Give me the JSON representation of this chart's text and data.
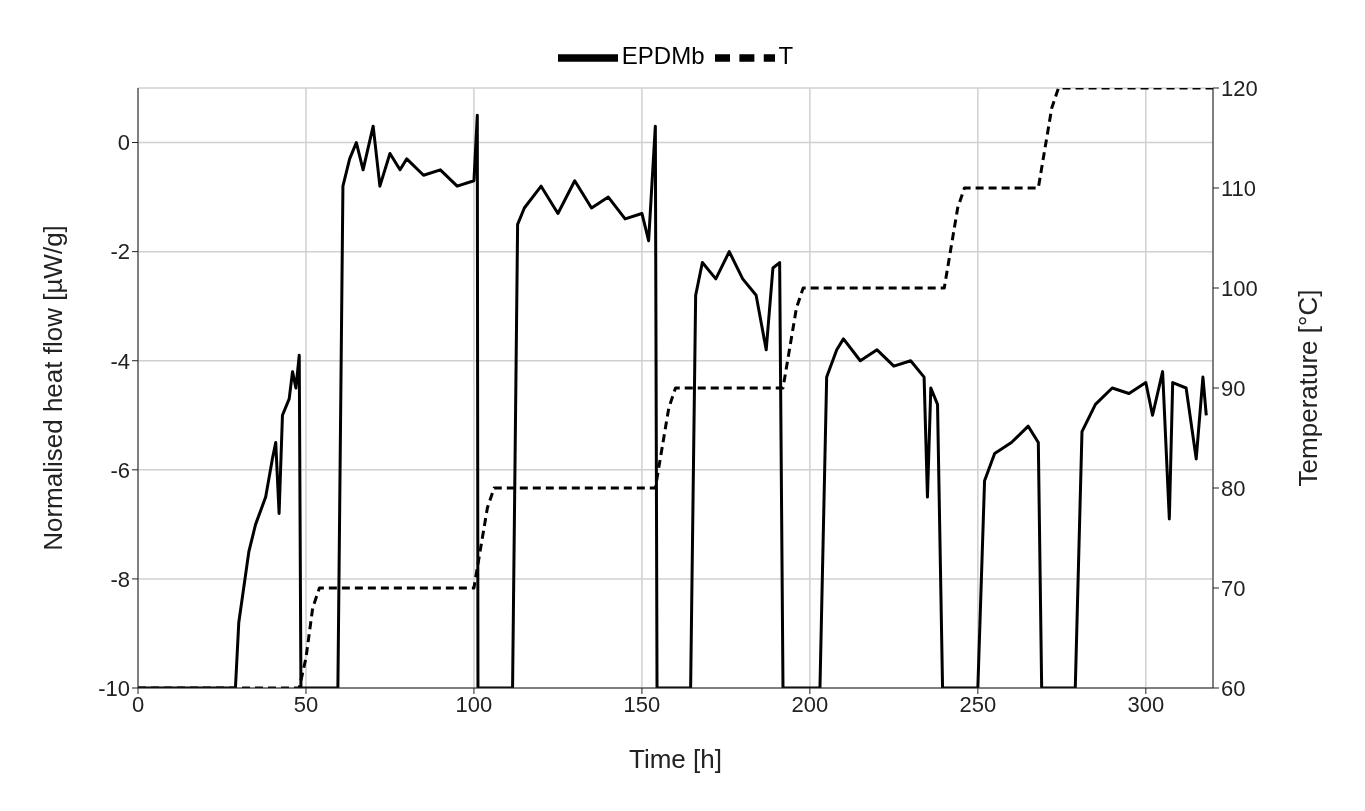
{
  "chart_data": {
    "type": "line",
    "xlabel": "Time [h]",
    "ylabel": "Normalised heat flow [µW/g]",
    "y2label": "Temperature [°C]",
    "xlim": [
      0,
      320
    ],
    "xticks": [
      0,
      50,
      100,
      150,
      200,
      250,
      300
    ],
    "ylim": [
      -10,
      1
    ],
    "yticks": [
      -10,
      -8,
      -6,
      -4,
      -2,
      0
    ],
    "y2lim": [
      60,
      120
    ],
    "y2ticks": [
      60,
      70,
      80,
      90,
      100,
      110,
      120
    ],
    "grid": true,
    "legend": "top",
    "marker": "none",
    "series": [
      {
        "name": "EPDMb",
        "color": "#000000",
        "line_style": "solid",
        "x": [
          0,
          29,
          30,
          33,
          35,
          38,
          40,
          41,
          42,
          43,
          45,
          46,
          47,
          48,
          48.5,
          59.5,
          61,
          63,
          65,
          67,
          70,
          72,
          75,
          78,
          80,
          85,
          90,
          95,
          100,
          101,
          101.2,
          111.5,
          113,
          115,
          120,
          125,
          130,
          135,
          140,
          145,
          150,
          152,
          154,
          154.5,
          164.5,
          166,
          168,
          172,
          176,
          180,
          184,
          187,
          189,
          191,
          192,
          203,
          205,
          208,
          210,
          215,
          220,
          225,
          230,
          234,
          235,
          236,
          238,
          239.5,
          250,
          252,
          255,
          260,
          265,
          268,
          269,
          279,
          281,
          285,
          290,
          295,
          300,
          302,
          305,
          307,
          308,
          312,
          315,
          317,
          318
        ],
        "values": [
          -10,
          -10,
          -8.8,
          -7.5,
          -7,
          -6.5,
          -5.8,
          -5.5,
          -6.8,
          -5,
          -4.7,
          -4.2,
          -4.5,
          -3.9,
          -10,
          -10,
          -0.8,
          -0.3,
          0,
          -0.5,
          0.3,
          -0.8,
          -0.2,
          -0.5,
          -0.3,
          -0.6,
          -0.5,
          -0.8,
          -0.7,
          0.5,
          -10,
          -10,
          -1.5,
          -1.2,
          -0.8,
          -1.3,
          -0.7,
          -1.2,
          -1,
          -1.4,
          -1.3,
          -1.8,
          0.3,
          -10,
          -10,
          -2.8,
          -2.2,
          -2.5,
          -2,
          -2.5,
          -2.8,
          -3.8,
          -2.3,
          -2.2,
          -10,
          -10,
          -4.3,
          -3.8,
          -3.6,
          -4,
          -3.8,
          -4.1,
          -4,
          -4.3,
          -6.5,
          -4.5,
          -4.8,
          -10,
          -10,
          -6.2,
          -5.7,
          -5.5,
          -5.2,
          -5.5,
          -10,
          -10,
          -5.3,
          -4.8,
          -4.5,
          -4.6,
          -4.4,
          -5,
          -4.2,
          -6.9,
          -4.4,
          -4.5,
          -5.8,
          -4.3,
          -5
        ]
      },
      {
        "name": "T",
        "color": "#000000",
        "line_style": "dashed",
        "axis": "y2",
        "x": [
          0,
          48,
          50,
          52,
          54,
          100,
          102,
          104,
          106,
          154,
          156,
          158,
          160,
          192,
          194,
          196,
          198,
          240,
          242,
          244,
          246,
          268,
          270,
          272,
          274,
          320
        ],
        "values": [
          60,
          60,
          63,
          68,
          70,
          70,
          74,
          78,
          80,
          80,
          84,
          88,
          90,
          90,
          94,
          98,
          100,
          100,
          104,
          108,
          110,
          110,
          114,
          118,
          120,
          120
        ]
      }
    ]
  }
}
